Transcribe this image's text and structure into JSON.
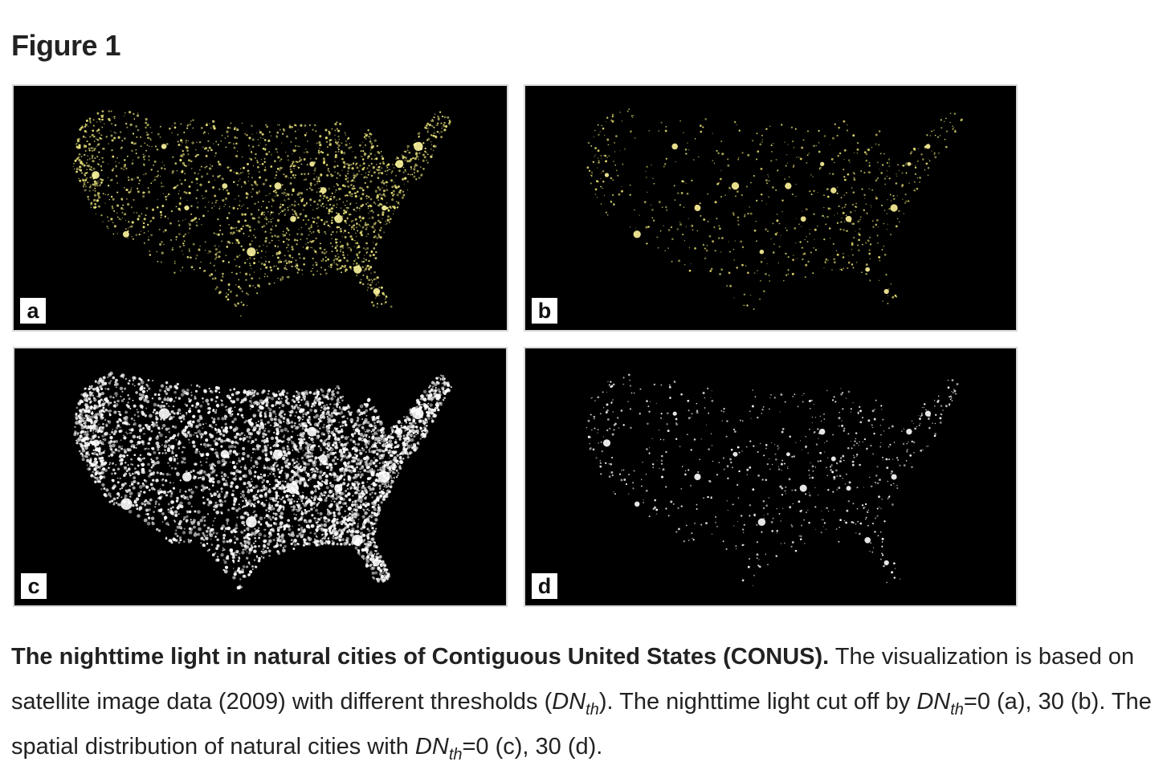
{
  "figure": {
    "title": "Figure 1"
  },
  "panels": [
    {
      "id": "a",
      "label": "a",
      "style": "yellow-light",
      "dot_color": "#e8e27a",
      "glow_color": "#fff7a0"
    },
    {
      "id": "b",
      "label": "b",
      "style": "yellow-light-sparse",
      "dot_color": "#e3dc6e",
      "glow_color": "#fff49a"
    },
    {
      "id": "c",
      "label": "c",
      "style": "white-cities-dense",
      "dot_color": "#ffffff",
      "glow_color": "#ffffff"
    },
    {
      "id": "d",
      "label": "d",
      "style": "white-cities-sparse",
      "dot_color": "#ffffff",
      "glow_color": "#ffffff"
    }
  ],
  "caption": {
    "bold_lead": "The nighttime light in natural cities of Contiguous United States (CONUS).",
    "part1": " The visualization is based on satellite image data (2009) with different thresholds (",
    "dn": "DN",
    "th": "th",
    "part2": "). The nighttime light cut off by ",
    "part3": "=0 (a), 30 (b). The spatial distribution of natural cities with ",
    "part4": "=0 (c), 30 (d)."
  }
}
